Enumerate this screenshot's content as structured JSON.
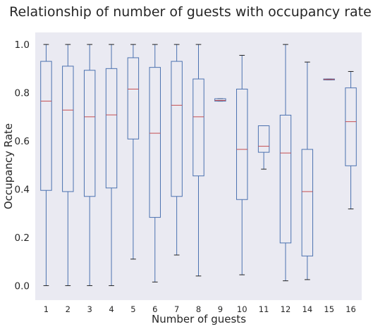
{
  "chart_data": {
    "type": "box",
    "title": "Relationship of number of guests with occupancy rate",
    "xlabel": "Number of guests",
    "ylabel": "Occupancy Rate",
    "ylim": [
      -0.06,
      1.05
    ],
    "y_ticks": [
      "0.0",
      "0.2",
      "0.4",
      "0.6",
      "0.8",
      "1.0"
    ],
    "y_tick_values": [
      0.0,
      0.2,
      0.4,
      0.6,
      0.8,
      1.0
    ],
    "grid": false,
    "categories": [
      "1",
      "2",
      "3",
      "4",
      "5",
      "6",
      "7",
      "8",
      "9",
      "10",
      "11",
      "12",
      "14",
      "15",
      "16"
    ],
    "boxes": [
      {
        "category": "1",
        "whisker_low": 0.0,
        "q1": 0.395,
        "median": 0.765,
        "q3": 0.93,
        "whisker_high": 1.0
      },
      {
        "category": "2",
        "whisker_low": 0.0,
        "q1": 0.39,
        "median": 0.728,
        "q3": 0.91,
        "whisker_high": 1.0
      },
      {
        "category": "3",
        "whisker_low": 0.0,
        "q1": 0.37,
        "median": 0.7,
        "q3": 0.893,
        "whisker_high": 1.0
      },
      {
        "category": "4",
        "whisker_low": 0.0,
        "q1": 0.405,
        "median": 0.708,
        "q3": 0.9,
        "whisker_high": 1.0
      },
      {
        "category": "5",
        "whisker_low": 0.11,
        "q1": 0.608,
        "median": 0.815,
        "q3": 0.945,
        "whisker_high": 1.0
      },
      {
        "category": "6",
        "whisker_low": 0.015,
        "q1": 0.283,
        "median": 0.632,
        "q3": 0.905,
        "whisker_high": 1.0
      },
      {
        "category": "7",
        "whisker_low": 0.127,
        "q1": 0.37,
        "median": 0.748,
        "q3": 0.93,
        "whisker_high": 1.0
      },
      {
        "category": "8",
        "whisker_low": 0.04,
        "q1": 0.455,
        "median": 0.7,
        "q3": 0.857,
        "whisker_high": 1.0
      },
      {
        "category": "9",
        "whisker_low": 0.765,
        "q1": 0.765,
        "median": 0.768,
        "q3": 0.775,
        "whisker_high": 0.775
      },
      {
        "category": "10",
        "whisker_low": 0.045,
        "q1": 0.357,
        "median": 0.565,
        "q3": 0.815,
        "whisker_high": 0.955
      },
      {
        "category": "11",
        "whisker_low": 0.483,
        "q1": 0.553,
        "median": 0.578,
        "q3": 0.663,
        "whisker_high": 0.663
      },
      {
        "category": "12",
        "whisker_low": 0.02,
        "q1": 0.177,
        "median": 0.55,
        "q3": 0.707,
        "whisker_high": 1.0
      },
      {
        "category": "14",
        "whisker_low": 0.025,
        "q1": 0.123,
        "median": 0.39,
        "q3": 0.565,
        "whisker_high": 0.927
      },
      {
        "category": "15",
        "whisker_low": 0.853,
        "q1": 0.853,
        "median": 0.855,
        "q3": 0.857,
        "whisker_high": 0.857
      },
      {
        "category": "16",
        "whisker_low": 0.318,
        "q1": 0.497,
        "median": 0.68,
        "q3": 0.82,
        "whisker_high": 0.888
      }
    ],
    "colors": {
      "plot_background": "#eaeaf2",
      "box": "#4c72b0",
      "median": "#c44e52",
      "cap": "#222222"
    }
  }
}
